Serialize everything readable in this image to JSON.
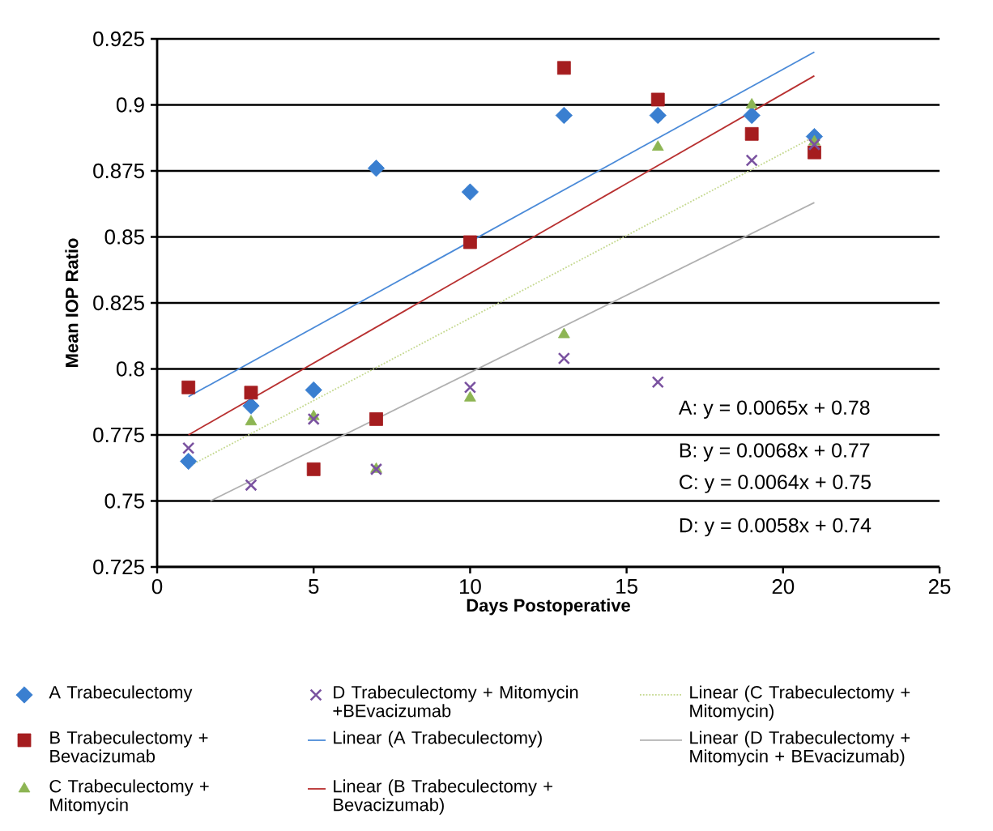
{
  "chart_data": {
    "type": "scatter",
    "xlabel": "Days Postoperative",
    "ylabel": "Mean IOP Ratio",
    "xlim": [
      0,
      25
    ],
    "xticks": [
      0,
      5,
      10,
      15,
      20,
      25
    ],
    "ylim": [
      0.725,
      0.925
    ],
    "yticks": [
      0.725,
      0.75,
      0.775,
      0.8,
      0.825,
      0.85,
      0.875,
      0.9,
      0.925
    ],
    "grid": "y",
    "legend": "bottom",
    "series": [
      {
        "name": "A Trabeculectomy",
        "color": "#3a7fd0",
        "marker": "diamond",
        "x": [
          1,
          3,
          5,
          7,
          10,
          13,
          16,
          19,
          21
        ],
        "values": [
          0.765,
          0.786,
          0.792,
          0.876,
          0.867,
          0.896,
          0.896,
          0.896,
          0.888
        ]
      },
      {
        "name": "B Trabeculectomy + Bevacizumab",
        "color": "#a51d1f",
        "marker": "square",
        "x": [
          1,
          3,
          5,
          7,
          10,
          13,
          16,
          19,
          21
        ],
        "values": [
          0.793,
          0.791,
          0.762,
          0.781,
          0.848,
          0.914,
          0.902,
          0.889,
          0.882
        ]
      },
      {
        "name": "C Trabeculectomy + Mitomycin",
        "color": "#8db553",
        "marker": "triangle",
        "x": [
          3,
          5,
          7,
          10,
          13,
          16,
          19,
          21
        ],
        "values": [
          0.78,
          0.782,
          0.762,
          0.789,
          0.813,
          0.884,
          0.9,
          0.886
        ]
      },
      {
        "name": "D Trabeculectomy + Mitomycin +BEvacizumab",
        "color": "#7a52a0",
        "marker": "cross",
        "x": [
          1,
          3,
          5,
          7,
          10,
          13,
          16,
          19,
          21
        ],
        "values": [
          0.77,
          0.756,
          0.781,
          0.762,
          0.793,
          0.804,
          0.795,
          0.879,
          0.885
        ]
      },
      {
        "name": "Linear (A Trabeculectomy)",
        "type": "line",
        "color": "#4a8ad8",
        "marker": "none",
        "line_style": "solid",
        "x": [
          1,
          21
        ],
        "values": [
          0.7895,
          0.92
        ]
      },
      {
        "name": "Linear (B Trabeculectomy + Bevacizumab)",
        "type": "line",
        "color": "#b83030",
        "marker": "none",
        "line_style": "solid",
        "x": [
          1,
          21
        ],
        "values": [
          0.775,
          0.911
        ]
      },
      {
        "name": "Linear (C Trabeculectomy + Mitomycin)",
        "type": "line",
        "color": "#c4d88e",
        "marker": "none",
        "line_style": "dotted",
        "x": [
          1,
          21
        ],
        "values": [
          0.763,
          0.888
        ]
      },
      {
        "name": "Linear (D Trabeculectomy + Mitomycin + BEvacizumab)",
        "type": "line",
        "color": "#b0b0b0",
        "marker": "none",
        "line_style": "solid",
        "x": [
          1.7,
          21
        ],
        "values": [
          0.75,
          0.863
        ]
      }
    ],
    "annotations": [
      "A: y = 0.0065x + 0.78",
      "B: y = 0.0068x + 0.77",
      "C: y = 0.0064x + 0.75",
      "D: y = 0.0058x + 0.74"
    ]
  }
}
